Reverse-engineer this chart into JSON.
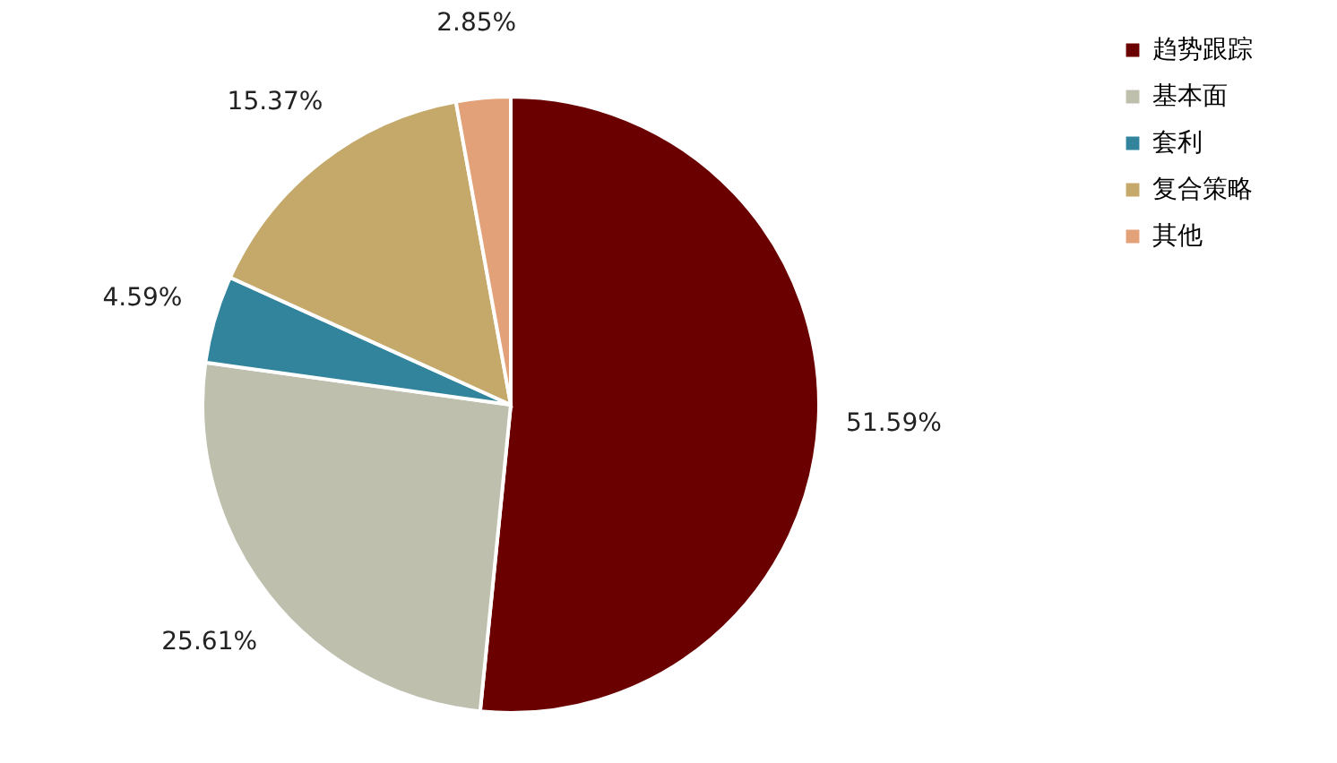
{
  "chart_data": {
    "type": "pie",
    "categories": [
      "趋势跟踪",
      "基本面",
      "套利",
      "复合策略",
      "其他"
    ],
    "values": [
      51.59,
      25.61,
      4.59,
      15.37,
      2.85
    ],
    "colors": [
      "#6b0000",
      "#bfbfae",
      "#31849b",
      "#c4a96a",
      "#e3a17a"
    ],
    "value_labels": [
      "51.59%",
      "25.61%",
      "4.59%",
      "15.37%",
      "2.85%"
    ],
    "legend": "right"
  }
}
